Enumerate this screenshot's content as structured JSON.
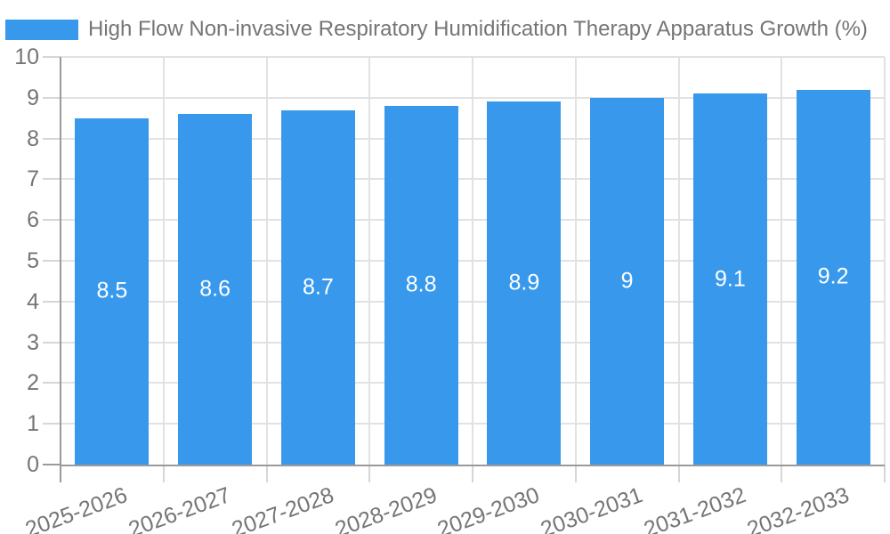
{
  "chart_data": {
    "type": "bar",
    "title": "High Flow Non-invasive Respiratory Humidification Therapy Apparatus Growth (%)",
    "legend": {
      "label": "High Flow Non-invasive Respiratory Humidification Therapy Apparatus Growth (%)",
      "position": "top-left"
    },
    "categories": [
      "2025-2026",
      "2026-2027",
      "2027-2028",
      "2028-2029",
      "2029-2030",
      "2030-2031",
      "2031-2032",
      "2032-2033"
    ],
    "values": [
      8.5,
      8.6,
      8.7,
      8.8,
      8.9,
      9,
      9.1,
      9.2
    ],
    "value_labels": [
      "8.5",
      "8.6",
      "8.7",
      "8.8",
      "8.9",
      "9",
      "9.1",
      "9.2"
    ],
    "xlabel": "",
    "ylabel": "",
    "ylim": [
      0,
      10
    ],
    "yticks": [
      0,
      1,
      2,
      3,
      4,
      5,
      6,
      7,
      8,
      9,
      10
    ],
    "grid": true,
    "x_tick_rotation_deg": -20,
    "colors": {
      "bar": "#3899ec",
      "axis": "#9a9a9a",
      "grid": "#e2e2e2",
      "tick_mark": "#d6d6d6",
      "text": "#757575",
      "value_label": "#ffffff",
      "background": "#ffffff"
    }
  }
}
